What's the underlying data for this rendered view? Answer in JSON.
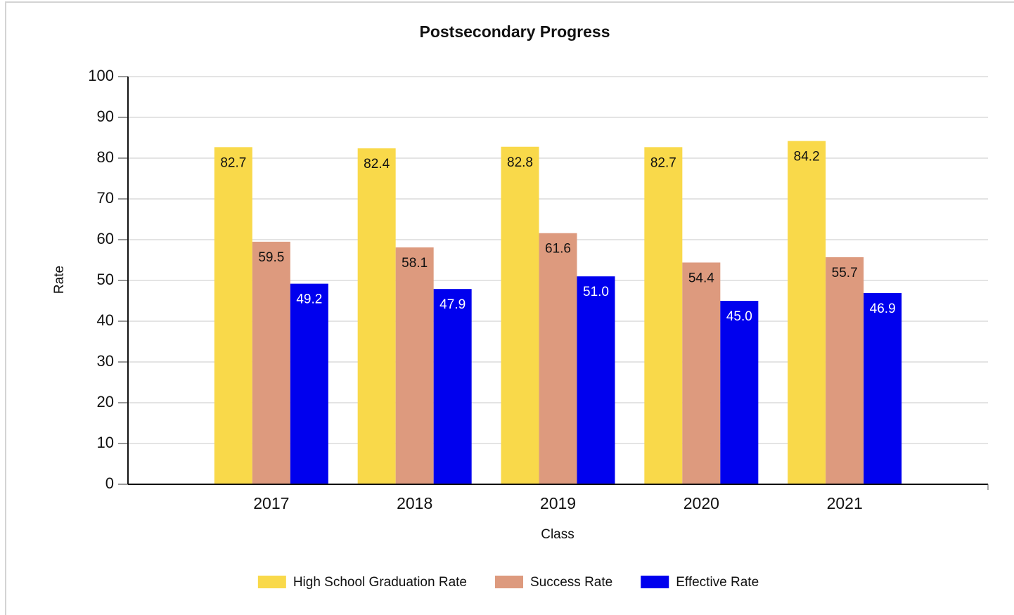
{
  "chart_data": {
    "type": "bar",
    "title": "Postsecondary Progress",
    "x_label": "Class",
    "y_label": "Rate",
    "categories": [
      "2017",
      "2018",
      "2019",
      "2020",
      "2021"
    ],
    "series": [
      {
        "name": "High School Graduation Rate",
        "color": "#f9d94a",
        "values": [
          82.7,
          82.4,
          82.8,
          82.7,
          84.2
        ],
        "value_labels": [
          "82.7",
          "82.4",
          "82.8",
          "82.7",
          "84.2"
        ]
      },
      {
        "name": "Success Rate",
        "color": "#dd9a7e",
        "values": [
          59.5,
          58.1,
          61.6,
          54.4,
          55.7
        ],
        "value_labels": [
          "59.5",
          "58.1",
          "61.6",
          "54.4",
          "55.7"
        ]
      },
      {
        "name": "Effective Rate",
        "color": "#0000ee",
        "values": [
          49.2,
          47.9,
          51.0,
          45.0,
          46.9
        ],
        "value_labels": [
          "49.2",
          "47.9",
          "51.0",
          "45.0",
          "46.9"
        ]
      }
    ],
    "ylim": [
      0,
      100
    ],
    "yticks": [
      0,
      10,
      20,
      30,
      40,
      50,
      60,
      70,
      80,
      90,
      100
    ],
    "grid": true,
    "legend": "bottom"
  }
}
